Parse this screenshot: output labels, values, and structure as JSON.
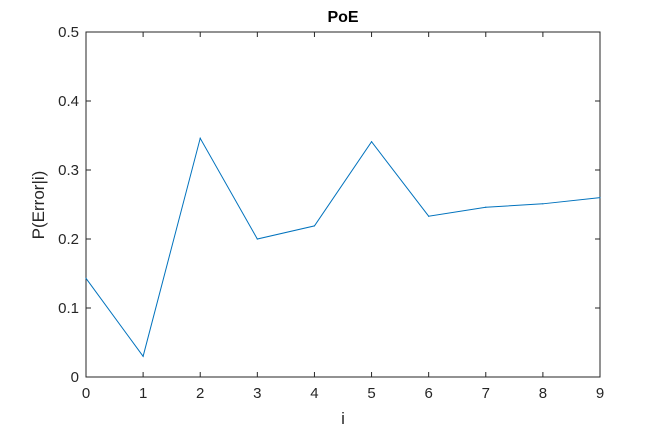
{
  "chart_data": {
    "type": "line",
    "title": "PoE",
    "xlabel": "i",
    "ylabel": "P(Error|i)",
    "xlim": [
      0,
      9
    ],
    "ylim": [
      0,
      0.5
    ],
    "x_ticks": [
      "0",
      "1",
      "2",
      "3",
      "4",
      "5",
      "6",
      "7",
      "8",
      "9"
    ],
    "y_ticks": [
      "0",
      "0.1",
      "0.2",
      "0.3",
      "0.4",
      "0.5"
    ],
    "grid": false,
    "x": [
      0,
      1,
      2,
      3,
      4,
      5,
      6,
      7,
      8,
      9
    ],
    "series": [
      {
        "values": [
          0.143,
          0.03,
          0.346,
          0.2,
          0.219,
          0.341,
          0.233,
          0.246,
          0.251,
          0.26
        ],
        "color": "#0072BD"
      }
    ]
  }
}
